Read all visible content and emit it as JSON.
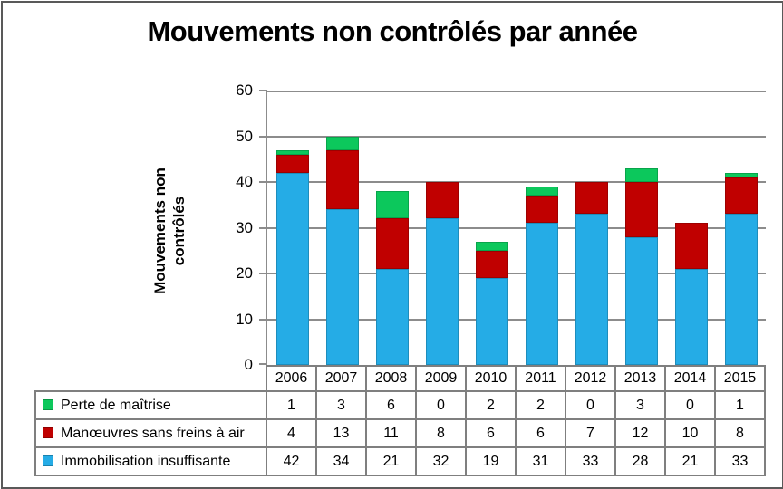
{
  "frame": {
    "border_color": "#595959",
    "background": "#FFFFFF"
  },
  "title": "Mouvements non contrôlés par année",
  "y_axis": {
    "label": "Mouvements non contrôlés",
    "label_lines": [
      "Mouvements non",
      "contrôlés"
    ],
    "ticks": [
      0,
      10,
      20,
      30,
      40,
      50,
      60
    ],
    "max": 60
  },
  "chart_data": {
    "type": "bar",
    "stacked": true,
    "title": "Mouvements non contrôlés par année",
    "xlabel": "",
    "ylabel": "Mouvements non contrôlés",
    "ylim": [
      0,
      60
    ],
    "ytick_interval": 10,
    "grid": true,
    "legend_position": "table-left-bottom",
    "categories": [
      "2006",
      "2007",
      "2008",
      "2009",
      "2010",
      "2011",
      "2012",
      "2013",
      "2014",
      "2015"
    ],
    "series": [
      {
        "name": "Perte de maîtrise",
        "color": "#0CC85C",
        "values": [
          1,
          3,
          6,
          0,
          2,
          2,
          0,
          3,
          0,
          1
        ]
      },
      {
        "name": "Manœuvres sans freins à air",
        "color": "#C00000",
        "values": [
          4,
          13,
          11,
          8,
          6,
          6,
          7,
          12,
          10,
          8
        ]
      },
      {
        "name": "Immobilisation insuffisante",
        "color": "#25ACE6",
        "values": [
          42,
          34,
          21,
          32,
          19,
          31,
          33,
          28,
          21,
          33
        ]
      }
    ],
    "stack_order_bottom_to_top": [
      2,
      1,
      0
    ]
  },
  "colors": {
    "grid": "#8C8C8C",
    "axis": "#8C8C8C",
    "table_border": "#7F7F7F",
    "text": "#000000"
  }
}
